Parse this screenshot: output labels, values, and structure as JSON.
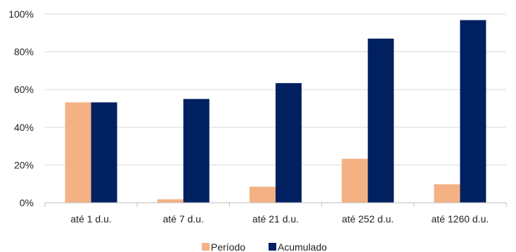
{
  "chart_data": {
    "type": "bar",
    "categories": [
      "até 1 d.u.",
      "até 7 d.u.",
      "até 21 d.u.",
      "até 252 d.u.",
      "até 1260 d.u."
    ],
    "series": [
      {
        "name": "Período",
        "values": [
          53.2,
          1.8,
          8.5,
          23.3,
          9.8
        ],
        "color": "#F4B183"
      },
      {
        "name": "Acumulado",
        "values": [
          53.2,
          55.0,
          63.4,
          87.0,
          96.8
        ],
        "color": "#002060"
      }
    ],
    "ylim": [
      0,
      100
    ],
    "yticks": [
      0,
      20,
      40,
      60,
      80,
      100
    ],
    "ytick_labels": [
      "0%",
      "20%",
      "40%",
      "60%",
      "80%",
      "100%"
    ],
    "grid": true,
    "legend_position": "bottom"
  }
}
